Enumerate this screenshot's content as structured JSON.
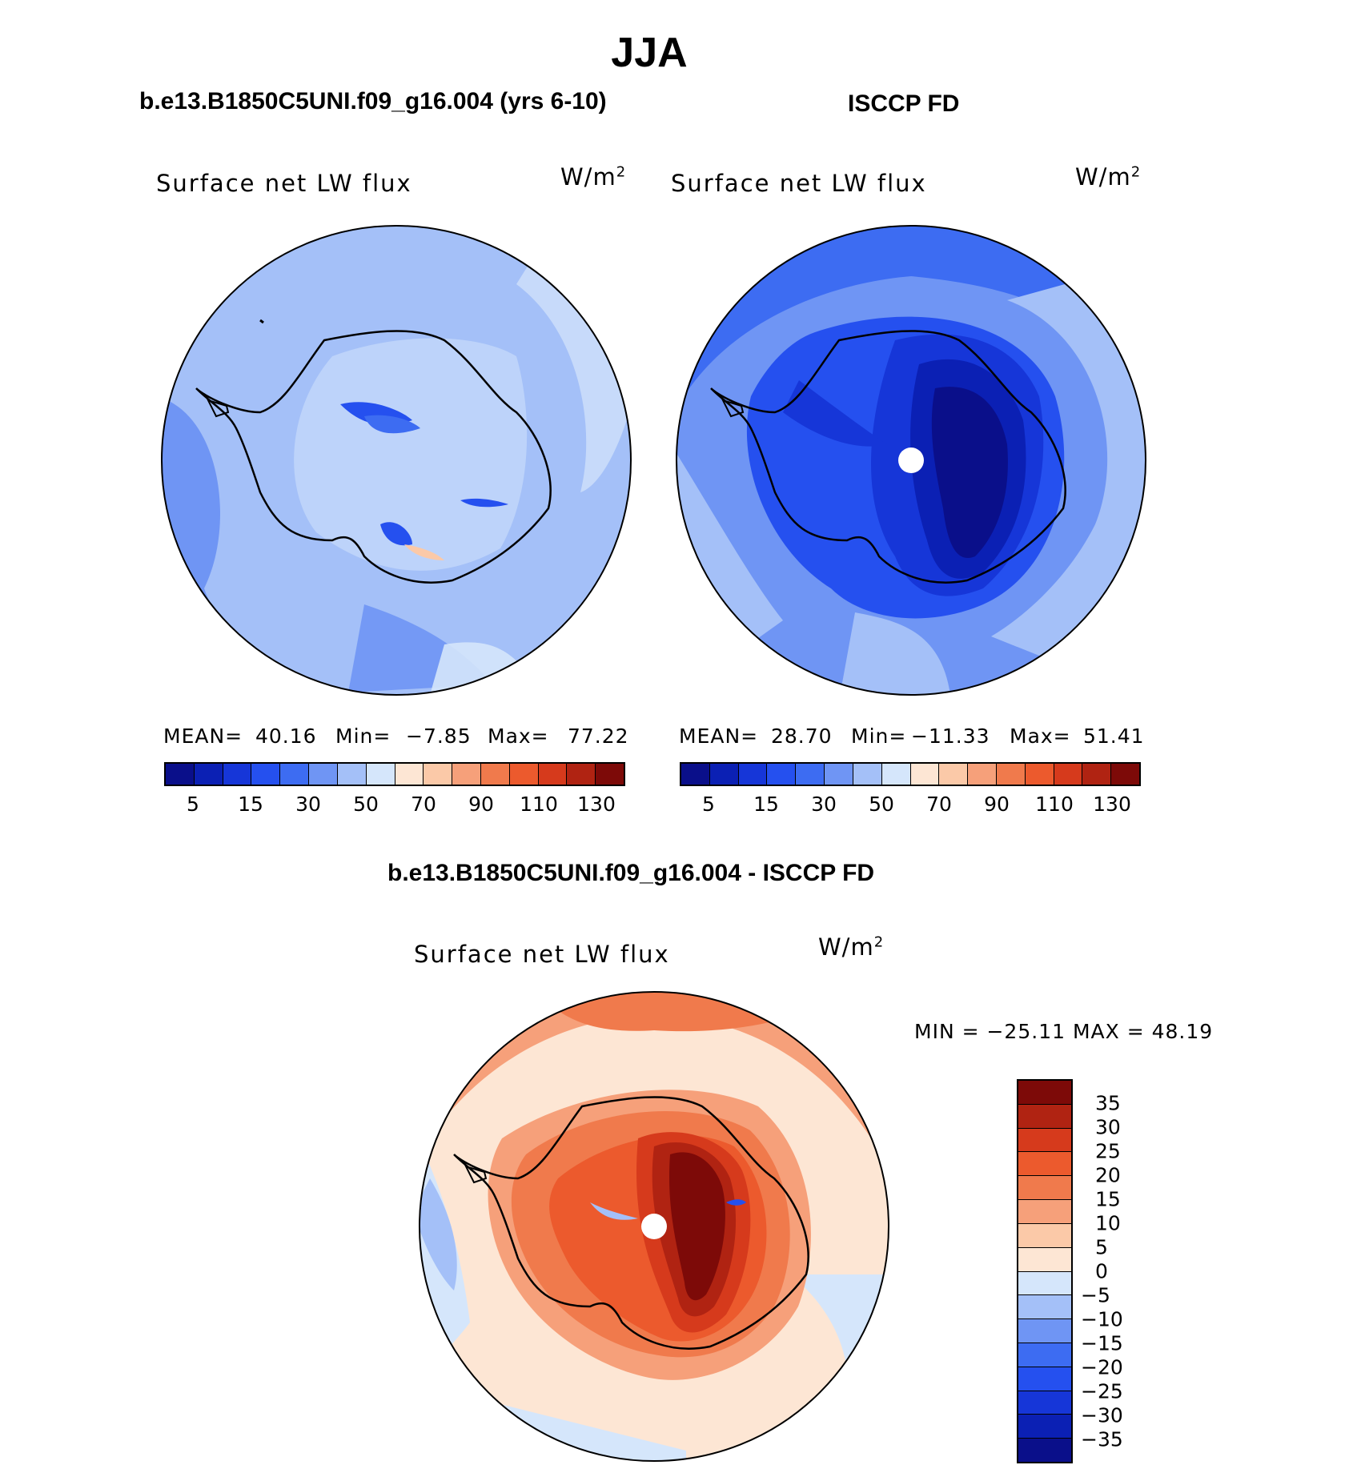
{
  "title": "JJA",
  "panels": [
    {
      "header": "b.e13.B1850C5UNI.f09_g16.004 (yrs 6-10)",
      "variable": "Surface net LW flux",
      "units": "W/m",
      "units_exp": "2",
      "stats": {
        "mean_label": "MEAN=",
        "mean": "40.16",
        "min_label": "Min=",
        "min": "−7.85",
        "max_label": "Max=",
        "max": "77.22"
      },
      "pole_marker": false
    },
    {
      "header": "ISCCP FD",
      "variable": "Surface net LW flux",
      "units": "W/m",
      "units_exp": "2",
      "stats": {
        "mean_label": "MEAN=",
        "mean": "28.70",
        "min_label": "Min=",
        "min": "−11.33",
        "max_label": "Max=",
        "max": "51.41"
      },
      "pole_marker": true
    }
  ],
  "colorbar_top": {
    "colors": [
      "#0a0f8a",
      "#0b20b4",
      "#1636d8",
      "#2550ef",
      "#3d6cf2",
      "#6f95f4",
      "#a4c0f8",
      "#d5e6fb",
      "#fde6d4",
      "#fbc9a8",
      "#f6a07a",
      "#f07a4c",
      "#ec5a2d",
      "#d63a1c",
      "#b02312",
      "#7d0a08"
    ],
    "ticks": [
      "5",
      "15",
      "30",
      "50",
      "70",
      "90",
      "110",
      "130"
    ]
  },
  "diff_panel": {
    "header": "b.e13.B1850C5UNI.f09_g16.004 - ISCCP FD",
    "variable": "Surface net LW flux",
    "units": "W/m",
    "units_exp": "2",
    "minmax": "MIN = −25.11 MAX =   48.19",
    "pole_marker": true
  },
  "colorbar_diff": {
    "colors_top_to_bottom": [
      "#7d0a08",
      "#b02312",
      "#d63a1c",
      "#ec5a2d",
      "#f07a4c",
      "#f6a07a",
      "#fbc9a8",
      "#fde6d4",
      "#d5e6fb",
      "#a4c0f8",
      "#6f95f4",
      "#3d6cf2",
      "#2550ef",
      "#1636d8",
      "#0b20b4",
      "#0a0f8a"
    ],
    "ticks": [
      "35",
      "30",
      "25",
      "20",
      "15",
      "10",
      "5",
      "0",
      "−5",
      "−10",
      "−15",
      "−20",
      "−25",
      "−30",
      "−35"
    ]
  }
}
